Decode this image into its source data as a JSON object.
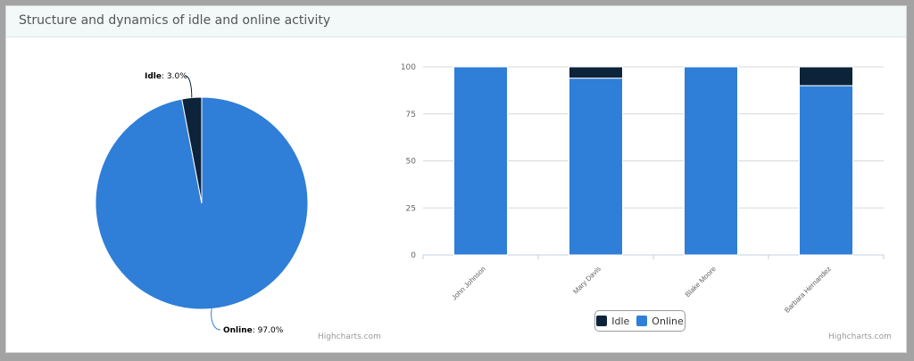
{
  "panel": {
    "title": "Structure and dynamics of idle and online activity"
  },
  "colors": {
    "online": "#2f7ed8",
    "idle": "#0d233a"
  },
  "chart_data": [
    {
      "type": "pie",
      "slices": [
        {
          "name": "Online",
          "value": 97.0,
          "label": "97.0%",
          "color": "#2f7ed8"
        },
        {
          "name": "Idle",
          "value": 3.0,
          "label": "3.0%",
          "color": "#0d233a"
        }
      ],
      "credit": "Highcharts.com"
    },
    {
      "type": "bar",
      "stacked": true,
      "categories": [
        "John Johnson",
        "Mary Davis",
        "Blake Moore",
        "Barbara Hernandez"
      ],
      "series": [
        {
          "name": "Idle",
          "color": "#0d233a",
          "values": [
            0,
            6,
            0,
            10
          ]
        },
        {
          "name": "Online",
          "color": "#2f7ed8",
          "values": [
            100,
            94,
            100,
            90
          ]
        }
      ],
      "ylim": [
        0,
        100
      ],
      "yticks": [
        "0",
        "25",
        "50",
        "75",
        "100"
      ],
      "grid": true,
      "legend_position": "bottom-center",
      "credit": "Highcharts.com"
    }
  ]
}
